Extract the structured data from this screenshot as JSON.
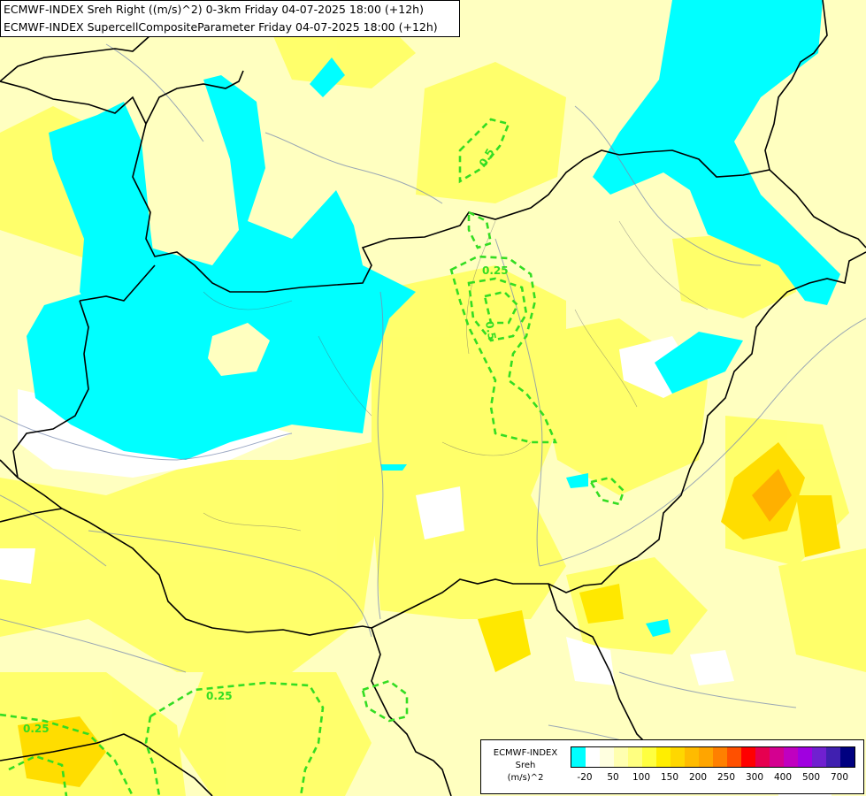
{
  "header": {
    "line1": "ECMWF-INDEX Sreh Right ((m/s)^2) 0-3km Friday 04-07-2025 18:00 (+12h)",
    "line2": "ECMWF-INDEX SupercellCompositeParameter Friday 04-07-2025 18:00 (+12h)"
  },
  "legend": {
    "source": "ECMWF-INDEX",
    "field": "Sreh",
    "unit": "(m/s)^2",
    "colors": [
      "#00ffff",
      "#ffffff",
      "#ffffe0",
      "#ffffb0",
      "#ffff80",
      "#ffff40",
      "#ffee00",
      "#ffd700",
      "#ffbb00",
      "#ffa500",
      "#ff8000",
      "#ff5000",
      "#ff0000",
      "#e60050",
      "#d40090",
      "#c000c0",
      "#a000e0",
      "#7020d0",
      "#4020b0",
      "#000080"
    ],
    "ticks": [
      "-20",
      "50",
      "100",
      "150",
      "200",
      "250",
      "300",
      "400",
      "500",
      "700"
    ]
  },
  "contours": {
    "label_025": "0.25",
    "label_05": "0.5",
    "label_05b": "0.5",
    "label_025b": "0.25",
    "label_025c": "0.25"
  }
}
